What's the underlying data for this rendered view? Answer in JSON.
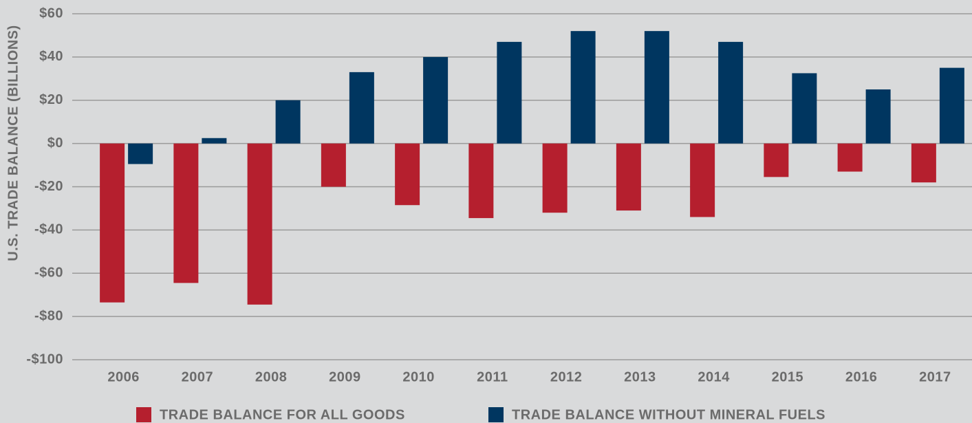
{
  "chart_data": {
    "type": "bar",
    "y_label": "U.S. TRADE BALANCE (BILLIONS)",
    "categories": [
      "2006",
      "2007",
      "2008",
      "2009",
      "2010",
      "2011",
      "2012",
      "2013",
      "2014",
      "2015",
      "2016",
      "2017"
    ],
    "series": [
      {
        "name": "TRADE BALANCE FOR ALL GOODS",
        "color": "#b51f2e",
        "values": [
          -73.5,
          -64.5,
          -74.5,
          -20,
          -28.5,
          -34.5,
          -32,
          -31,
          -34,
          -15.5,
          -13,
          -18
        ]
      },
      {
        "name": "TRADE BALANCE WITHOUT MINERAL FUELS",
        "color": "#003660",
        "values": [
          -9.5,
          2.5,
          20,
          33,
          40,
          47,
          52,
          52,
          47,
          32.5,
          25,
          35
        ]
      }
    ],
    "ylim": [
      -100,
      60
    ],
    "yticks": [
      {
        "value": -100,
        "label": "-$100"
      },
      {
        "value": -80,
        "label": "-$80"
      },
      {
        "value": -60,
        "label": "-$60"
      },
      {
        "value": -40,
        "label": "-$40"
      },
      {
        "value": -20,
        "label": "-$20"
      },
      {
        "value": 0,
        "label": "$0"
      },
      {
        "value": 20,
        "label": "$20"
      },
      {
        "value": 40,
        "label": "$40"
      },
      {
        "value": 60,
        "label": "$60"
      }
    ],
    "grid": true
  }
}
